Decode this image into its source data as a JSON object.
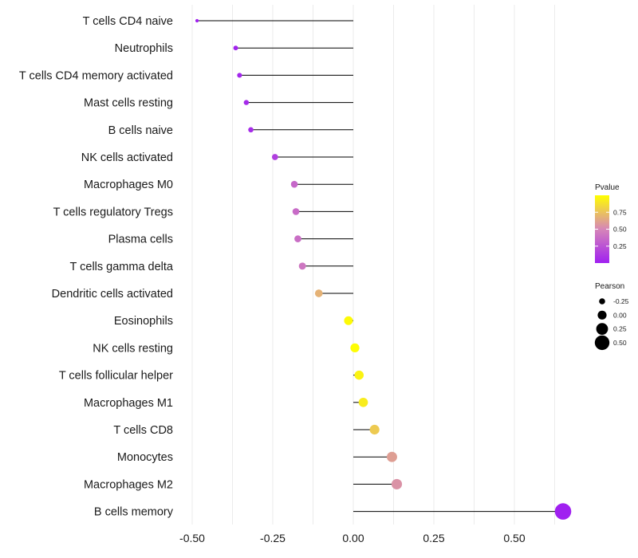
{
  "chart_data": {
    "type": "lollipop",
    "title": "",
    "xlabel": "",
    "ylabel": "",
    "xlim": [
      -0.5,
      0.65
    ],
    "grid": true,
    "x_ticks": [
      -0.5,
      -0.25,
      0.0,
      0.25,
      0.5
    ],
    "x_tick_labels": [
      "-0.50",
      "-0.25",
      "0.00",
      "0.25",
      "0.50"
    ],
    "categories": [
      "T cells CD4 naive",
      "Neutrophils",
      "T cells CD4 memory activated",
      "Mast cells resting",
      "B cells naive",
      "NK cells activated",
      "Macrophages M0",
      "T cells regulatory  Tregs",
      "Plasma cells",
      "T cells gamma delta",
      "Dendritic cells activated",
      "Eosinophils",
      "NK cells resting",
      "T cells follicular helper",
      "Macrophages M1",
      "T cells CD8",
      "Monocytes",
      "Macrophages M2",
      "B cells memory"
    ],
    "values": [
      -0.485,
      -0.365,
      -0.353,
      -0.332,
      -0.318,
      -0.243,
      -0.183,
      -0.178,
      -0.172,
      -0.158,
      -0.107,
      -0.015,
      0.005,
      0.018,
      0.031,
      0.066,
      0.12,
      0.135,
      0.651
    ],
    "pvalues": [
      0.0,
      0.02,
      0.03,
      0.05,
      0.06,
      0.15,
      0.35,
      0.37,
      0.38,
      0.42,
      0.68,
      0.98,
      0.99,
      0.95,
      0.92,
      0.78,
      0.6,
      0.55,
      0.0
    ],
    "legend_position": "right",
    "pvalue_legend": {
      "title": "Pvalue",
      "labels": [
        "0.75",
        "0.50",
        "0.25"
      ],
      "values": [
        0.75,
        0.5,
        0.25
      ],
      "color_low": "#a020f0",
      "color_mid": "#d686b8",
      "color_high": "#ffff00"
    },
    "pearson_legend": {
      "title": "Pearson",
      "labels": [
        "-0.25",
        "0.00",
        "0.25",
        "0.50"
      ],
      "values": [
        -0.25,
        0.0,
        0.25,
        0.5
      ]
    }
  }
}
